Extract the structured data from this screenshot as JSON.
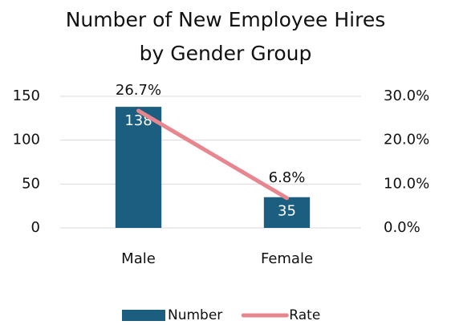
{
  "chart_data": {
    "type": "bar_line",
    "title": "Number of New Employee Hires by Gender Group",
    "categories": [
      "Male",
      "Female"
    ],
    "series": [
      {
        "name": "Number",
        "type": "bar",
        "color": "#1b5e80",
        "values": [
          138,
          35
        ]
      },
      {
        "name": "Rate",
        "type": "line",
        "axis": "y2",
        "color": "#e8868f",
        "values": [
          26.7,
          6.8
        ],
        "value_labels": [
          "26.7%",
          "6.8%"
        ]
      }
    ],
    "ylim": [
      0,
      150
    ],
    "yticks": [
      0,
      50,
      100,
      150
    ],
    "y2lim": [
      0,
      30
    ],
    "y2ticks": [
      {
        "value": 0,
        "label": "0.0%"
      },
      {
        "value": 10,
        "label": "10.0%"
      },
      {
        "value": 20,
        "label": "20.0%"
      },
      {
        "value": 30,
        "label": "30.0%"
      }
    ],
    "grid": true,
    "legend": "bottom"
  }
}
